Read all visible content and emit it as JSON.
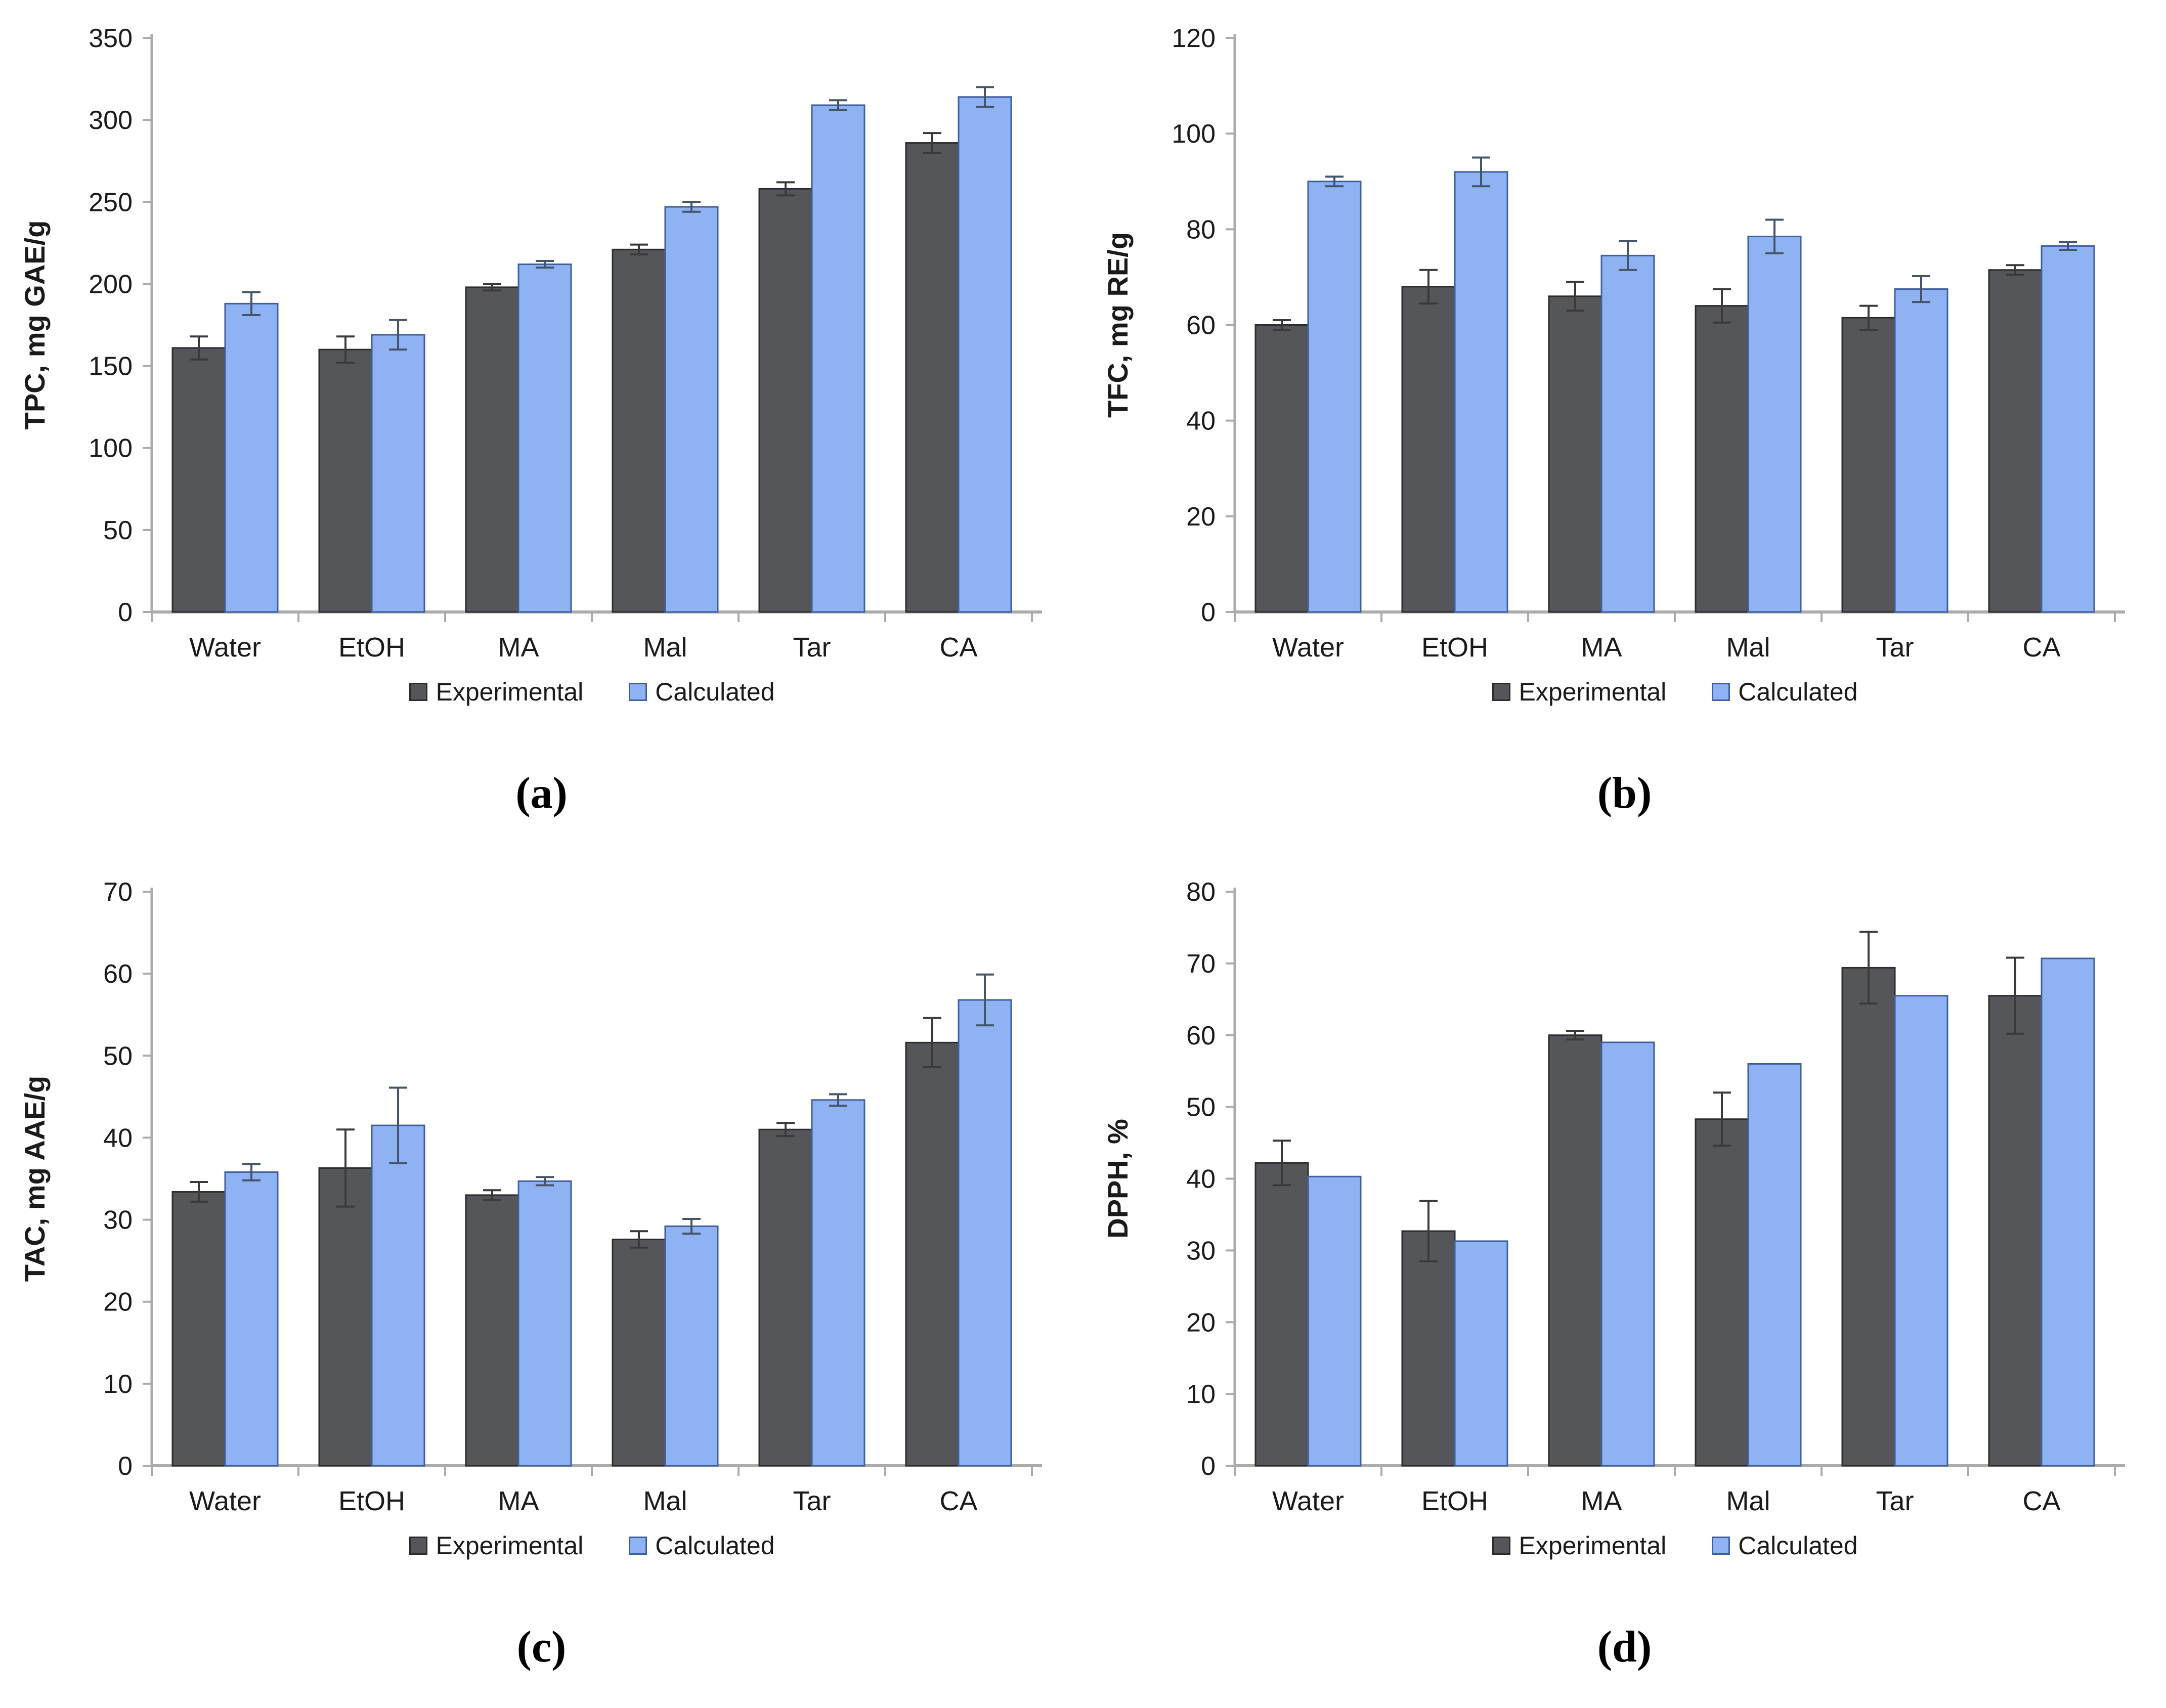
{
  "legend": {
    "experimental": "Experimental",
    "calculated": "Calculated"
  },
  "colors": {
    "experimental_fill": "#545659",
    "experimental_border": "#2b2c2e",
    "calculated_fill": "#8fb3f2",
    "calculated_border": "#3f5e9e",
    "error_experimental": "#3a3a3c",
    "error_calculated": "#44546a",
    "axis": "#ababab",
    "text": "#1a1a1a",
    "background": "#ffffff"
  },
  "chart_data": [
    {
      "type": "bar",
      "panel_label": "(a)",
      "title": "",
      "xlabel": "",
      "ylabel": "TPC, mg GAE/g",
      "ylim": [
        0,
        350
      ],
      "ystep": 50,
      "grid": false,
      "legend_position": "bottom",
      "categories": [
        "Water",
        "EtOH",
        "MA",
        "Mal",
        "Tar",
        "CA"
      ],
      "series": [
        {
          "name": "Experimental",
          "color_key": "experimental",
          "values": [
            161,
            160,
            198,
            221,
            258,
            286
          ],
          "errors": [
            7,
            8,
            2,
            3,
            4,
            6
          ]
        },
        {
          "name": "Calculated",
          "color_key": "calculated",
          "values": [
            188,
            169,
            212,
            247,
            309,
            314
          ],
          "errors": [
            7,
            9,
            2,
            3,
            3,
            6
          ]
        }
      ]
    },
    {
      "type": "bar",
      "panel_label": "(b)",
      "title": "",
      "xlabel": "",
      "ylabel": "TFC, mg RE/g",
      "ylim": [
        0,
        120
      ],
      "ystep": 20,
      "grid": false,
      "legend_position": "bottom",
      "categories": [
        "Water",
        "EtOH",
        "MA",
        "Mal",
        "Tar",
        "CA"
      ],
      "series": [
        {
          "name": "Experimental",
          "color_key": "experimental",
          "values": [
            60,
            68,
            66,
            64,
            61.5,
            71.5
          ],
          "errors": [
            1,
            3.5,
            3,
            3.5,
            2.5,
            1
          ]
        },
        {
          "name": "Calculated",
          "color_key": "calculated",
          "values": [
            90,
            92,
            74.5,
            78.5,
            67.5,
            76.5
          ],
          "errors": [
            1,
            3,
            3,
            3.5,
            2.7,
            0.8
          ]
        }
      ]
    },
    {
      "type": "bar",
      "panel_label": "(c)",
      "title": "",
      "xlabel": "",
      "ylabel": "TAC, mg AAE/g",
      "ylim": [
        0,
        70
      ],
      "ystep": 10,
      "grid": false,
      "legend_position": "bottom",
      "categories": [
        "Water",
        "EtOH",
        "MA",
        "Mal",
        "Tar",
        "CA"
      ],
      "series": [
        {
          "name": "Experimental",
          "color_key": "experimental",
          "values": [
            33.4,
            36.3,
            33,
            27.6,
            41,
            51.6
          ],
          "errors": [
            1.2,
            4.7,
            0.6,
            1,
            0.8,
            3
          ]
        },
        {
          "name": "Calculated",
          "color_key": "calculated",
          "values": [
            35.8,
            41.5,
            34.7,
            29.2,
            44.6,
            56.8
          ],
          "errors": [
            1,
            4.6,
            0.5,
            0.9,
            0.7,
            3.1
          ]
        }
      ]
    },
    {
      "type": "bar",
      "panel_label": "(d)",
      "title": "",
      "xlabel": "",
      "ylabel": "DPPH, %",
      "ylim": [
        0,
        80
      ],
      "ystep": 10,
      "grid": false,
      "legend_position": "bottom",
      "categories": [
        "Water",
        "EtOH",
        "MA",
        "Mal",
        "Tar",
        "CA"
      ],
      "series": [
        {
          "name": "Experimental",
          "color_key": "experimental",
          "values": [
            42.2,
            32.7,
            60,
            48.3,
            69.4,
            65.5
          ],
          "errors": [
            3.1,
            4.2,
            0.6,
            3.7,
            5,
            5.3
          ]
        },
        {
          "name": "Calculated",
          "color_key": "calculated",
          "values": [
            40.3,
            31.3,
            59,
            56,
            65.5,
            70.7
          ],
          "errors": [
            0,
            0,
            0,
            0,
            0,
            0
          ]
        }
      ]
    }
  ]
}
